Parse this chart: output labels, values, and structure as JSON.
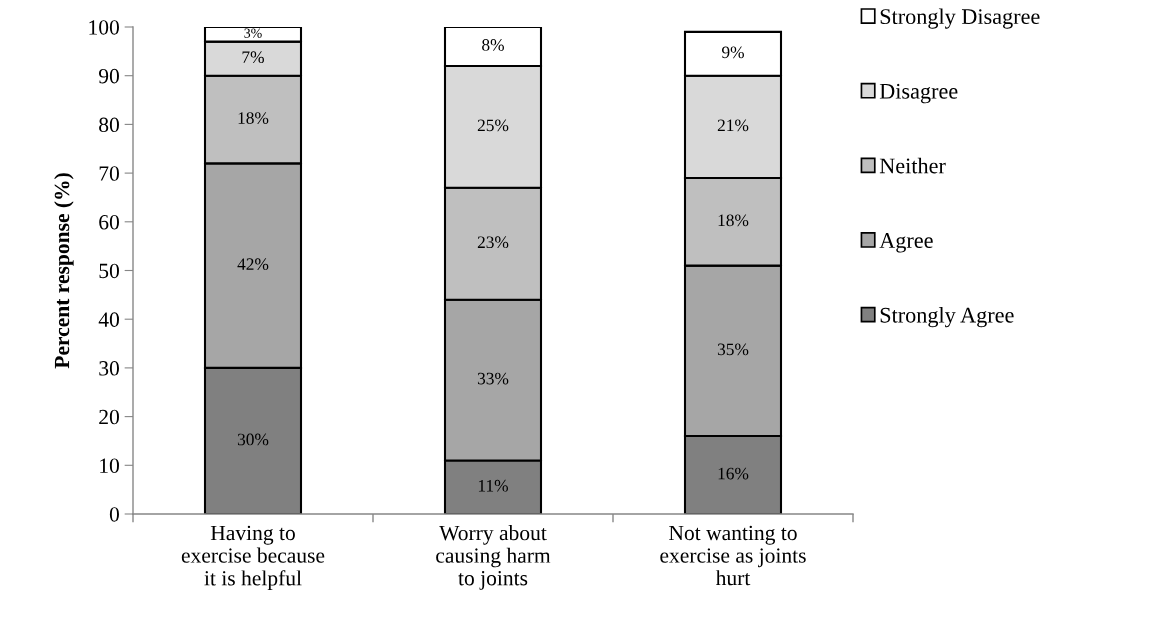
{
  "chart_data": {
    "type": "bar",
    "stacked": true,
    "categories": [
      "Having to\nexercise because\nit is helpful",
      "Worry about\ncausing harm\nto joints",
      "Not wanting to\nexercise as joints\nhurt"
    ],
    "ylabel": "Percent response (%)",
    "ylim": [
      0,
      100
    ],
    "yticks": [
      0,
      10,
      20,
      30,
      40,
      50,
      60,
      70,
      80,
      90,
      100
    ],
    "grid": false,
    "legend": "right",
    "series": [
      {
        "name": "Strongly Agree",
        "color": "#808080",
        "values": [
          30,
          11,
          16
        ],
        "value_labels": [
          "30%",
          "11%",
          "16%"
        ]
      },
      {
        "name": "Agree",
        "color": "#a6a6a6",
        "values": [
          42,
          33,
          35
        ],
        "value_labels": [
          "42%",
          "33%",
          "35%"
        ]
      },
      {
        "name": "Neither",
        "color": "#bfbfbf",
        "values": [
          18,
          23,
          18
        ],
        "value_labels": [
          "18%",
          "23%",
          "18%"
        ]
      },
      {
        "name": "Disagree",
        "color": "#d9d9d9",
        "values": [
          7,
          25,
          21
        ],
        "value_labels": [
          "7%",
          "25%",
          "21%"
        ]
      },
      {
        "name": "Strongly Disagree",
        "color": "#ffffff",
        "values": [
          3,
          8,
          9
        ],
        "value_labels": [
          "3%",
          "8%",
          "9%"
        ]
      }
    ]
  }
}
